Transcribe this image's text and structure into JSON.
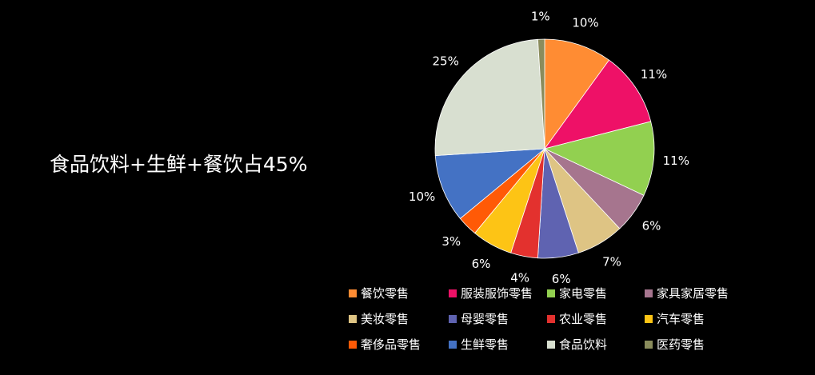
{
  "headline": "食品饮料+生鲜+餐饮占45%",
  "chart_data": {
    "type": "pie",
    "title": "",
    "start_angle_deg": 0,
    "direction": "clockwise",
    "slices": [
      {
        "label": "餐饮零售",
        "value": 10,
        "display": "10%",
        "color": "#FF8C33"
      },
      {
        "label": "服装服饰零售",
        "value": 11,
        "display": "11%",
        "color": "#EE1167"
      },
      {
        "label": "家电零售",
        "value": 11,
        "display": "11%",
        "color": "#92D050"
      },
      {
        "label": "家具家居零售",
        "value": 6,
        "display": "6%",
        "color": "#A6758E"
      },
      {
        "label": "美妆零售",
        "value": 7,
        "display": "7%",
        "color": "#DEC484"
      },
      {
        "label": "母婴零售",
        "value": 6,
        "display": "6%",
        "color": "#5F63B1"
      },
      {
        "label": "农业零售",
        "value": 4,
        "display": "4%",
        "color": "#E3312E"
      },
      {
        "label": "汽车零售",
        "value": 6,
        "display": "6%",
        "color": "#FDC415"
      },
      {
        "label": "奢侈品零售",
        "value": 3,
        "display": "3%",
        "color": "#FF5A06"
      },
      {
        "label": "生鲜零售",
        "value": 10,
        "display": "10%",
        "color": "#4472C4"
      },
      {
        "label": "食品饮料",
        "value": 25,
        "display": "25%",
        "color": "#D8DFD0"
      },
      {
        "label": "医药零售",
        "value": 1,
        "display": "1%",
        "color": "#8A8C5C"
      }
    ],
    "legend_position": "bottom"
  }
}
